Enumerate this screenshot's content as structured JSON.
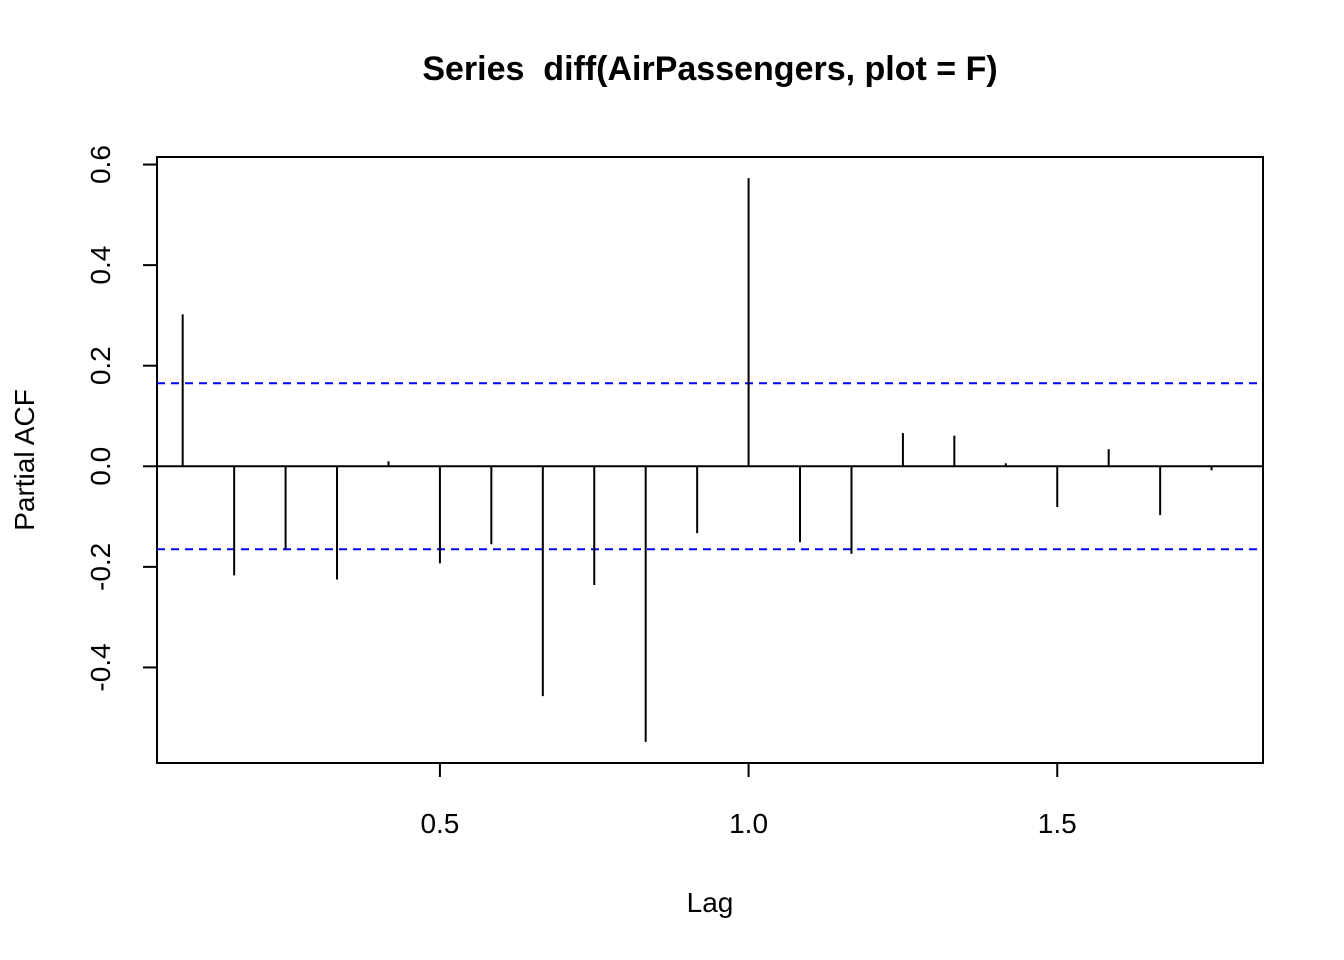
{
  "chart_data": {
    "type": "bar",
    "title": "Series  diff(AirPassengers, plot = F)",
    "xlabel": "Lag",
    "ylabel": "Partial ACF",
    "xlim": [
      0.0417,
      1.8333
    ],
    "ylim": [
      -0.59,
      0.615
    ],
    "x_ticks": [
      0.5,
      1.0,
      1.5
    ],
    "x_tick_labels": [
      "0.5",
      "1.0",
      "1.5"
    ],
    "y_ticks": [
      -0.4,
      -0.2,
      0.0,
      0.2,
      0.4,
      0.6
    ],
    "y_tick_labels": [
      "-0.4",
      "-0.2",
      "0.0",
      "0.2",
      "0.4",
      "0.6"
    ],
    "lags": [
      0.0833,
      0.1667,
      0.25,
      0.3333,
      0.4167,
      0.5,
      0.5833,
      0.6667,
      0.75,
      0.8333,
      0.9167,
      1.0,
      1.0833,
      1.1667,
      1.25,
      1.3333,
      1.4167,
      1.5,
      1.5833,
      1.6667,
      1.75
    ],
    "values": [
      0.302,
      -0.217,
      -0.164,
      -0.225,
      0.01,
      -0.193,
      -0.155,
      -0.457,
      -0.236,
      -0.548,
      -0.133,
      0.573,
      -0.151,
      -0.174,
      0.066,
      0.061,
      0.006,
      -0.081,
      0.034,
      -0.097,
      -0.008
    ],
    "confidence_bound": 0.165,
    "confidence_color": "#0000ff",
    "bar_color": "#000000",
    "grid": false
  }
}
